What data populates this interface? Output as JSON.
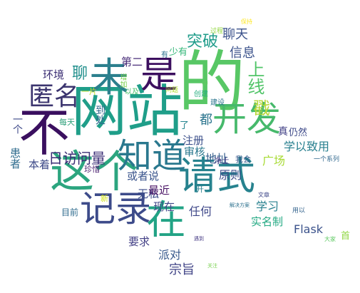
{
  "word_cloud": {
    "words": [
      {
        "text": "的",
        "color": "#58c765"
      },
      {
        "text": "网站",
        "color": "#1f9e89"
      },
      {
        "text": "请式",
        "color": "#26828e"
      },
      {
        "text": "不",
        "color": "#3a0f5f"
      },
      {
        "text": "这个",
        "color": "#2ca57f"
      },
      {
        "text": "在",
        "color": "#22a385"
      },
      {
        "text": "记录",
        "color": "#3d4b8a"
      },
      {
        "text": "知道",
        "color": "#2a788e"
      },
      {
        "text": "是",
        "color": "#3c0f5f"
      },
      {
        "text": "未",
        "color": "#2b7f8d"
      },
      {
        "text": "开发",
        "color": "#46b96b"
      },
      {
        "text": "匿名",
        "color": "#3c356f"
      },
      {
        "text": "上线",
        "color": "#52c569"
      },
      {
        "text": "日访问量",
        "color": "#3b2e76"
      },
      {
        "text": "突破",
        "color": "#1f9c8a"
      },
      {
        "text": "聊天",
        "color": "#3b528b"
      },
      {
        "text": "信息",
        "color": "#3b528b"
      },
      {
        "text": "戳",
        "color": "#b9d839"
      },
      {
        "text": "环境",
        "color": "#3a2d73"
      },
      {
        "text": "聊",
        "color": "#208f8c"
      },
      {
        "text": "第二",
        "color": "#4a2e7a"
      },
      {
        "text": "少有",
        "color": "#35b779"
      },
      {
        "text": "增加",
        "color": "#7bd14e"
      },
      {
        "text": "一片",
        "color": "#bcdf27"
      },
      {
        "text": "到处",
        "color": "#30678d"
      },
      {
        "text": "每天",
        "color": "#2ea07a"
      },
      {
        "text": "一个",
        "color": "#3e4989"
      },
      {
        "text": "患者",
        "color": "#2f6c8e"
      },
      {
        "text": "本着",
        "color": "#3c4887"
      },
      {
        "text": "珍惜",
        "color": "#481c6e"
      },
      {
        "text": "无私",
        "color": "#3d4d8a"
      },
      {
        "text": "最近",
        "color": "#471063"
      },
      {
        "text": "开",
        "color": "#2b7f8e"
      },
      {
        "text": "现在",
        "color": "#3f4788"
      },
      {
        "text": "新",
        "color": "#d0e11c"
      },
      {
        "text": "目前",
        "color": "#2f6b8e"
      },
      {
        "text": "要求",
        "color": "#423f85"
      },
      {
        "text": "派对",
        "color": "#38598c"
      },
      {
        "text": "宗旨",
        "color": "#414487"
      },
      {
        "text": "任何",
        "color": "#3f4889"
      },
      {
        "text": "学习",
        "color": "#27808e"
      },
      {
        "text": "实名制",
        "color": "#23a983"
      },
      {
        "text": "Flask",
        "color": "#3b528b"
      },
      {
        "text": "首",
        "color": "#90d743"
      },
      {
        "text": "大家",
        "color": "#5ec962"
      },
      {
        "text": "原则",
        "color": "#3e4c8a"
      },
      {
        "text": "地址",
        "color": "#355f8d"
      },
      {
        "text": "净土",
        "color": "#433e85"
      },
      {
        "text": "我会",
        "color": "#38588c"
      },
      {
        "text": "广场",
        "color": "#a8db34"
      },
      {
        "text": "学以致用",
        "color": "#277f8e"
      },
      {
        "text": "仍然",
        "color": "#3e4a89"
      },
      {
        "text": "真",
        "color": "#424186"
      },
      {
        "text": "都",
        "color": "#2b758e"
      },
      {
        "text": "审核",
        "color": "#2a788e"
      },
      {
        "text": "注册",
        "color": "#3c508b"
      },
      {
        "text": "了",
        "color": "#25848e"
      },
      {
        "text": "或者说",
        "color": "#3a548c"
      },
      {
        "text": "有",
        "color": "#2c728e"
      },
      {
        "text": "以及",
        "color": "#4ac16d"
      },
      {
        "text": "问题",
        "color": "#addc30"
      },
      {
        "text": "中",
        "color": "#63cb5f"
      },
      {
        "text": "过程",
        "color": "#93d741"
      },
      {
        "text": "保持",
        "color": "#fde725"
      },
      {
        "text": "一个系列",
        "color": "#31688e"
      },
      {
        "text": "文章",
        "color": "#3f4889"
      },
      {
        "text": "用以",
        "color": "#33638d"
      },
      {
        "text": "关注",
        "color": "#7ad151"
      },
      {
        "text": "遇到",
        "color": "#443983"
      },
      {
        "text": "解决方案",
        "color": "#2c718e"
      },
      {
        "text": "创建",
        "color": "#28ae80"
      },
      {
        "text": "建设",
        "color": "#2a768e"
      }
    ]
  }
}
